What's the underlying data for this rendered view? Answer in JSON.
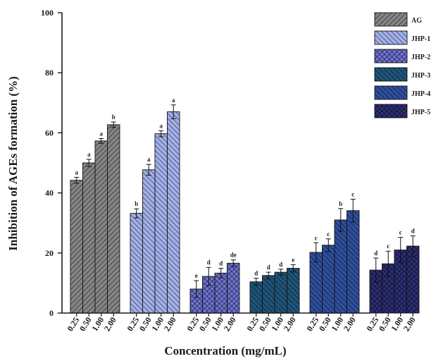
{
  "chart_data": {
    "type": "bar",
    "title": "",
    "xlabel": "Concentration (mg/mL)",
    "ylabel": "Inhibition of AGEs formation (%)",
    "ylim": [
      0,
      100
    ],
    "yticks": [
      "0",
      "20",
      "40",
      "60",
      "80",
      "100"
    ],
    "categories": [
      "0.25",
      "0.50",
      "1.00",
      "2.00"
    ],
    "legend_position": "top-right",
    "grid": false,
    "series": [
      {
        "name": "AG",
        "color": "#858585",
        "hatch": "forward",
        "values": [
          44.2,
          50.0,
          57.3,
          62.7
        ],
        "errors": [
          1.0,
          1.2,
          0.8,
          0.9
        ],
        "letters": [
          "a",
          "a",
          "a",
          "b"
        ]
      },
      {
        "name": "JHP-1",
        "color": "#a3b0ea",
        "hatch": "back",
        "values": [
          33.2,
          47.7,
          59.7,
          67.0
        ],
        "errors": [
          1.5,
          1.8,
          1.0,
          2.3
        ],
        "letters": [
          "b",
          "a",
          "a",
          "a"
        ]
      },
      {
        "name": "JHP-2",
        "color": "#6e73d2",
        "hatch": "cross",
        "values": [
          8.0,
          12.2,
          13.3,
          16.6
        ],
        "errors": [
          2.8,
          3.0,
          1.6,
          1.1
        ],
        "letters": [
          "e",
          "d",
          "d",
          "de"
        ]
      },
      {
        "name": "JHP-3",
        "color": "#1f5478",
        "hatch": "back",
        "values": [
          10.4,
          12.5,
          13.6,
          14.9
        ],
        "errors": [
          1.2,
          1.1,
          1.0,
          1.2
        ],
        "letters": [
          "d",
          "d",
          "d",
          "e"
        ]
      },
      {
        "name": "JHP-4",
        "color": "#2e4f9c",
        "hatch": "back",
        "values": [
          20.2,
          22.6,
          31.0,
          34.1
        ],
        "errors": [
          3.2,
          2.1,
          3.8,
          3.8
        ],
        "letters": [
          "c",
          "c",
          "b",
          "c"
        ]
      },
      {
        "name": "JHP-5",
        "color": "#2c2f75",
        "hatch": "cross",
        "values": [
          14.3,
          16.4,
          21.0,
          22.3
        ],
        "errors": [
          4.0,
          4.2,
          4.2,
          3.4
        ],
        "letters": [
          "d",
          "c",
          "c",
          "d"
        ]
      }
    ]
  }
}
